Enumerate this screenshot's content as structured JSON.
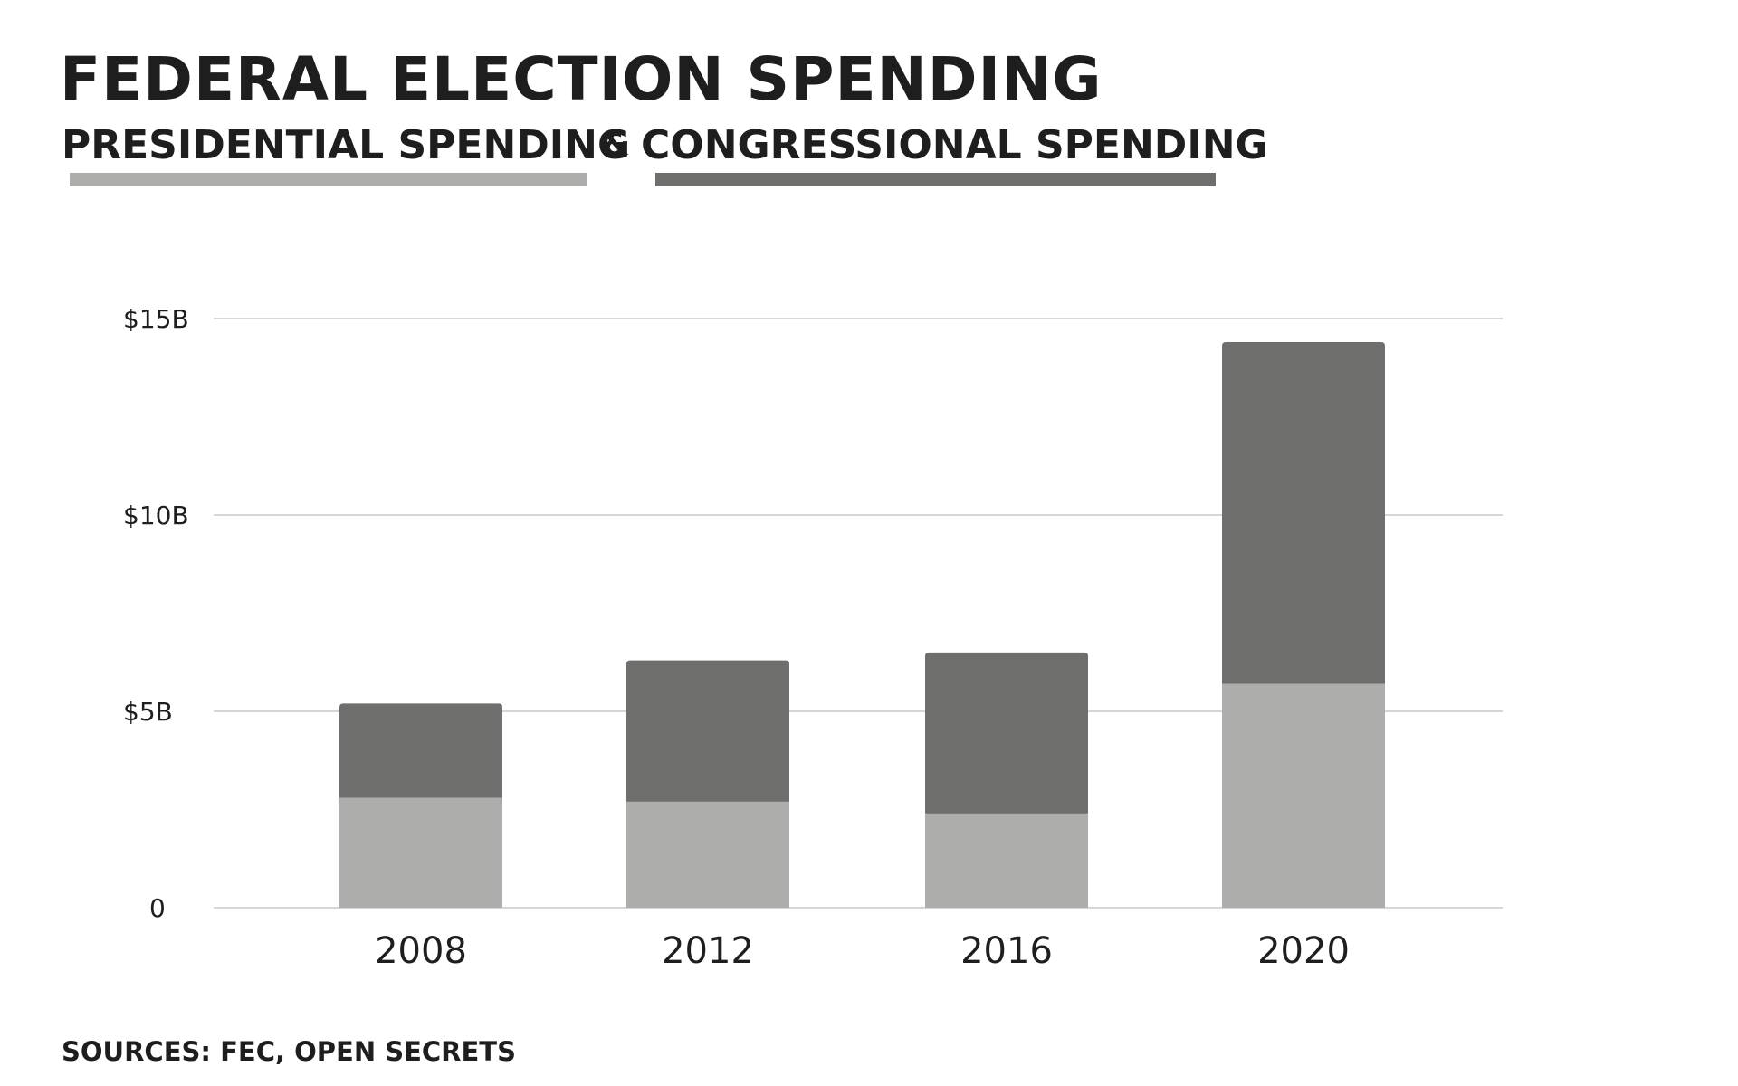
{
  "header": {
    "title": "FEDERAL ELECTION SPENDING",
    "separator": "&"
  },
  "footer": {
    "sources": "SOURCES: FEC, OPEN SECRETS"
  },
  "colors": {
    "presidential": "#adadab",
    "congressional": "#6e6e6c",
    "gridline": "#d6d6d6",
    "text": "#1e1e1e",
    "background": "#ffffff"
  },
  "chart_data": {
    "type": "bar",
    "stacked": true,
    "title": "FEDERAL ELECTION SPENDING",
    "categories": [
      "2008",
      "2012",
      "2016",
      "2020"
    ],
    "series": [
      {
        "name": "PRESIDENTIAL SPENDING",
        "values": [
          2.8,
          2.7,
          2.4,
          5.7
        ]
      },
      {
        "name": "CONGRESSIONAL SPENDING",
        "values": [
          2.4,
          3.6,
          4.1,
          8.7
        ]
      }
    ],
    "ylim": [
      0,
      15
    ],
    "yticks": [
      {
        "value": 0,
        "label": "0"
      },
      {
        "value": 5,
        "label": "$5B"
      },
      {
        "value": 10,
        "label": "$10B"
      },
      {
        "value": 15,
        "label": "$15B"
      }
    ],
    "xlabel": "",
    "ylabel": "",
    "grid": true,
    "legend": "top, under title"
  }
}
